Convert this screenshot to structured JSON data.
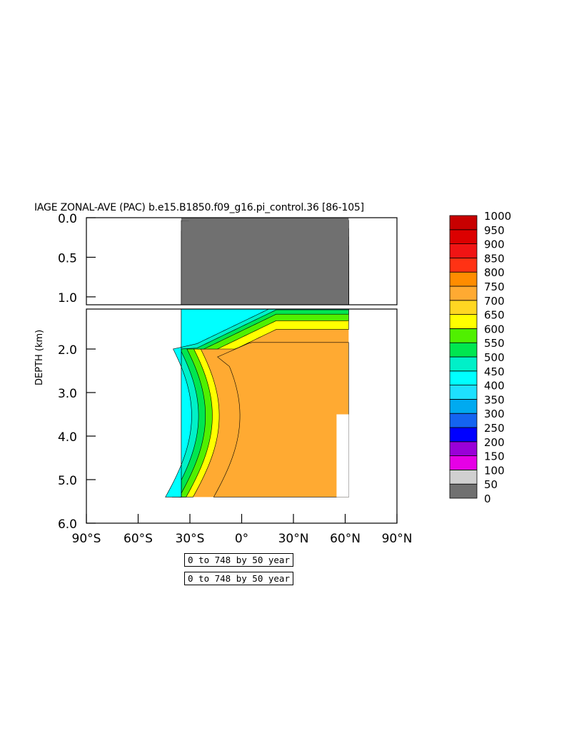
{
  "title": "IAGE ZONAL-AVE (PAC) b.e15.B1850.f09_g16.pi_control.36 [86-105]",
  "info_boxes": [
    "0 to 748 by 50 year",
    "0 to 748 by 50 year"
  ],
  "chart_data": {
    "type": "heatmap",
    "title": "IAGE ZONAL-AVE (PAC) b.e15.B1850.f09_g16.pi_control.36 [86-105]",
    "xlabel": "",
    "ylabel": "DEPTH (km)",
    "xlim": [
      -90,
      90
    ],
    "ylim": [
      6.0,
      0.0
    ],
    "x_ticks": [
      -90,
      -60,
      -30,
      0,
      30,
      60,
      90
    ],
    "x_tick_labels": [
      "90°S",
      "60°S",
      "30°S",
      "0°",
      "30°N",
      "60°N",
      "90°N"
    ],
    "y_ticks_upper": [
      0.0,
      0.5,
      1.0
    ],
    "y_tick_labels_upper": [
      "0.0",
      "0.5",
      "1.0"
    ],
    "y_ticks_lower": [
      2.0,
      3.0,
      4.0,
      5.0,
      6.0
    ],
    "y_tick_labels_lower": [
      "2.0",
      "3.0",
      "4.0",
      "5.0",
      "6.0"
    ],
    "panel_split_depth_km": 1.1,
    "data_extent_lat": [
      -35,
      62
    ],
    "levels": [
      0,
      50,
      100,
      150,
      200,
      250,
      300,
      350,
      400,
      450,
      500,
      550,
      600,
      650,
      700,
      750,
      800,
      850,
      900,
      950,
      1000
    ],
    "level_colors": [
      "#707070",
      "#d0d0d0",
      "#e600e6",
      "#9a00d8",
      "#0000ff",
      "#1464f0",
      "#00aaf0",
      "#1ee0ff",
      "#00ffff",
      "#00f0c8",
      "#00e650",
      "#50f000",
      "#ffff00",
      "#ffd722",
      "#ffaa32",
      "#ff8c00",
      "#ff3214",
      "#f01414",
      "#dc0000",
      "#c80000"
    ],
    "colorbar_labels": [
      "1000",
      "950",
      "900",
      "850",
      "800",
      "750",
      "700",
      "650",
      "600",
      "550",
      "500",
      "450",
      "400",
      "350",
      "300",
      "250",
      "200",
      "150",
      "100",
      "50",
      "0"
    ],
    "units": "year"
  }
}
